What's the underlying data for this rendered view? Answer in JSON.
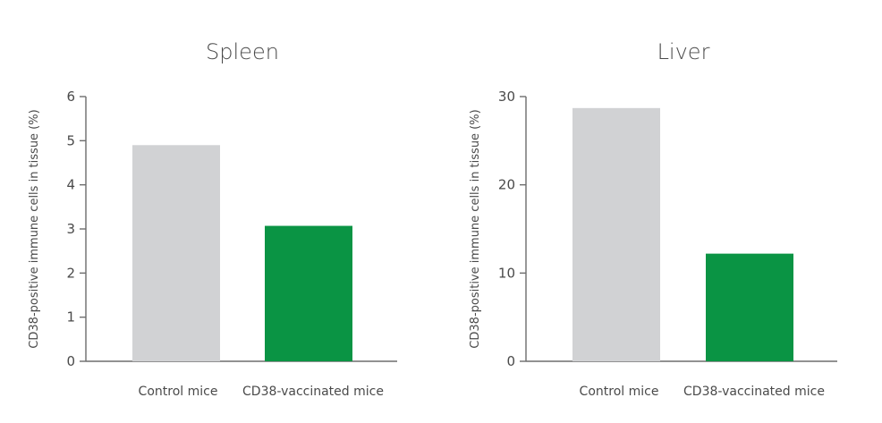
{
  "chart_data": [
    {
      "type": "bar",
      "title": "Spleen",
      "ylabel": "CD38-positive immune cells in tissue (%)",
      "categories": [
        "Control mice",
        "CD38-vaccinated mice"
      ],
      "values": [
        4.9,
        3.07
      ],
      "ylim": [
        0,
        6
      ],
      "yticks": [
        0,
        1,
        2,
        3,
        4,
        5,
        6
      ],
      "grid": false,
      "colors": [
        "#d1d2d4",
        "#0a9444"
      ]
    },
    {
      "type": "bar",
      "title": "Liver",
      "ylabel": "CD38-positive immune cells in tissue (%)",
      "categories": [
        "Control mice",
        "CD38-vaccinated mice"
      ],
      "values": [
        28.7,
        12.2
      ],
      "ylim": [
        0,
        30
      ],
      "yticks": [
        0,
        10,
        20,
        30
      ],
      "grid": false,
      "colors": [
        "#d1d2d4",
        "#0a9444"
      ]
    }
  ]
}
